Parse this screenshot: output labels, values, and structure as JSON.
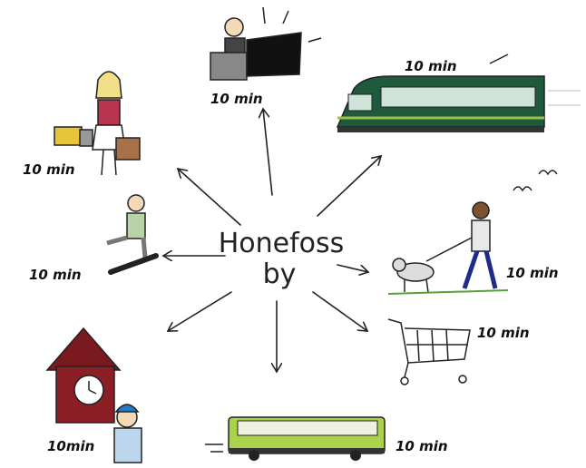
{
  "center": {
    "line1": "Honefoss",
    "line2": "by"
  },
  "nodes": [
    {
      "label": "10 min"
    },
    {
      "label": "10 min"
    },
    {
      "label": "10 min"
    },
    {
      "label": "10 min"
    },
    {
      "label": "10 min"
    },
    {
      "label": "10 min"
    },
    {
      "label": "10 min"
    },
    {
      "label": "10min"
    }
  ]
}
